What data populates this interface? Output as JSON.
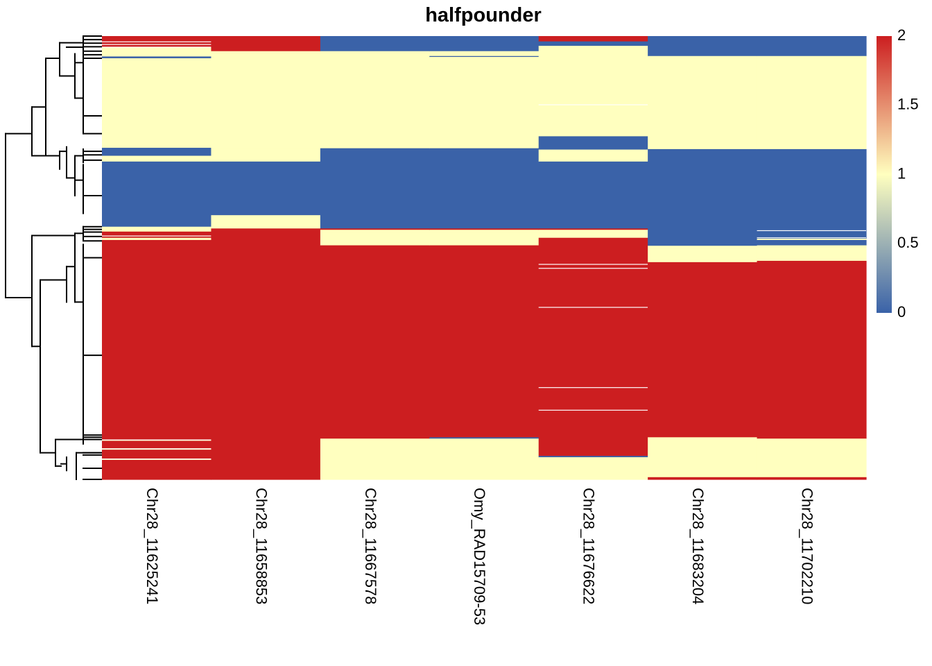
{
  "chart_data": {
    "type": "heatmap",
    "title": "halfpounder",
    "columns": [
      "Chr28_11625241",
      "Chr28_11658853",
      "Chr28_11667578",
      "Omy_RAD15709-53",
      "Chr28_11676622",
      "Chr28_11683204",
      "Chr28_11702210"
    ],
    "value_range": [
      0,
      2
    ],
    "colors": {
      "low": "#3A62A8",
      "mid": "#FFFFBF",
      "high": "#CC1E20"
    },
    "legend": {
      "ticks": [
        "2",
        "1.5",
        "1",
        "0.5",
        "0"
      ],
      "tick_values": [
        2,
        1.5,
        1,
        0.5,
        0
      ],
      "placement": "right"
    },
    "row_dendrogram": true,
    "row_blocks_note_units": "fraction of rows (top to bottom)",
    "column_blocks": [
      [
        [
          0.0,
          0.025,
          2
        ],
        [
          0.025,
          0.046,
          1
        ],
        [
          0.046,
          0.05,
          0
        ],
        [
          0.05,
          0.252,
          1
        ],
        [
          0.252,
          0.27,
          0
        ],
        [
          0.27,
          0.283,
          1
        ],
        [
          0.283,
          0.43,
          0
        ],
        [
          0.43,
          0.441,
          1
        ],
        [
          0.441,
          0.455,
          2
        ],
        [
          0.455,
          0.46,
          1
        ],
        [
          0.46,
          0.91,
          2
        ],
        [
          0.91,
          0.913,
          1
        ],
        [
          0.913,
          0.93,
          2
        ],
        [
          0.93,
          0.933,
          1
        ],
        [
          0.933,
          0.953,
          2
        ],
        [
          0.953,
          0.956,
          1
        ],
        [
          0.956,
          1.0,
          2
        ]
      ],
      [
        [
          0.0,
          0.034,
          2
        ],
        [
          0.034,
          0.253,
          1
        ],
        [
          0.253,
          0.283,
          1
        ],
        [
          0.283,
          0.404,
          0
        ],
        [
          0.404,
          0.434,
          1
        ],
        [
          0.434,
          1.0,
          2
        ]
      ],
      [
        [
          0.0,
          0.034,
          0
        ],
        [
          0.034,
          0.253,
          1
        ],
        [
          0.253,
          0.434,
          0
        ],
        [
          0.434,
          0.437,
          2
        ],
        [
          0.437,
          0.472,
          1
        ],
        [
          0.472,
          0.908,
          2
        ],
        [
          0.908,
          1.0,
          1
        ]
      ],
      [
        [
          0.0,
          0.034,
          0
        ],
        [
          0.034,
          0.045,
          1
        ],
        [
          0.045,
          0.047,
          0
        ],
        [
          0.047,
          0.253,
          1
        ],
        [
          0.253,
          0.434,
          0
        ],
        [
          0.434,
          0.437,
          2
        ],
        [
          0.437,
          0.472,
          1
        ],
        [
          0.472,
          0.905,
          2
        ],
        [
          0.905,
          0.908,
          0
        ],
        [
          0.908,
          1.0,
          1
        ]
      ],
      [
        [
          0.0,
          0.012,
          2
        ],
        [
          0.012,
          0.022,
          0
        ],
        [
          0.022,
          0.226,
          1
        ],
        [
          0.226,
          0.256,
          0
        ],
        [
          0.256,
          0.283,
          1
        ],
        [
          0.283,
          0.434,
          0
        ],
        [
          0.434,
          0.437,
          2
        ],
        [
          0.437,
          0.455,
          1
        ],
        [
          0.455,
          0.947,
          2
        ],
        [
          0.947,
          0.95,
          0
        ],
        [
          0.95,
          1.0,
          1
        ]
      ],
      [
        [
          0.0,
          0.045,
          0
        ],
        [
          0.045,
          0.255,
          1
        ],
        [
          0.255,
          0.473,
          0
        ],
        [
          0.473,
          0.51,
          1
        ],
        [
          0.51,
          0.905,
          2
        ],
        [
          0.905,
          0.995,
          1
        ],
        [
          0.995,
          1.0,
          2
        ]
      ],
      [
        [
          0.0,
          0.045,
          0
        ],
        [
          0.045,
          0.255,
          1
        ],
        [
          0.255,
          0.457,
          0
        ],
        [
          0.457,
          0.46,
          1
        ],
        [
          0.46,
          0.472,
          0
        ],
        [
          0.472,
          0.507,
          1
        ],
        [
          0.507,
          0.51,
          2
        ],
        [
          0.51,
          0.908,
          2
        ],
        [
          0.908,
          0.995,
          1
        ],
        [
          0.995,
          1.0,
          2
        ]
      ]
    ],
    "white_lines": [
      [
        0.012,
        0.018,
        0.024,
        0.45,
        0.91,
        0.93,
        0.953
      ],
      [],
      [],
      [],
      [
        0.154,
        0.514,
        0.523,
        0.611,
        0.792,
        0.843
      ],
      [],
      [
        0.438,
        0.454
      ]
    ],
    "dendrogram_leaf_groups": [
      0.025,
      0.05,
      0.18,
      0.262,
      0.36,
      0.438,
      0.462,
      0.72,
      0.905,
      0.94,
      0.975
    ]
  }
}
